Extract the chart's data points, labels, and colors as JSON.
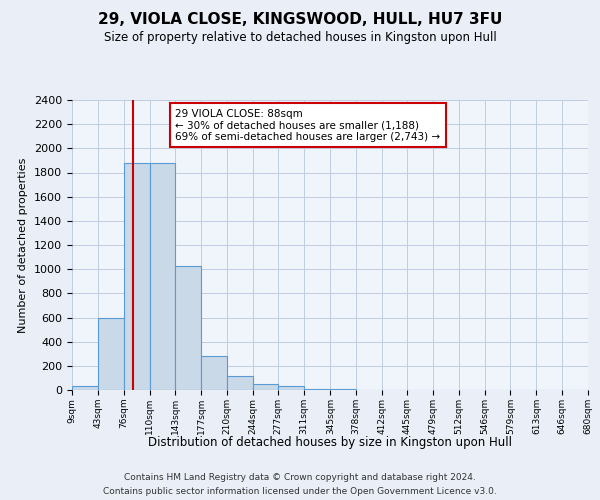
{
  "title": "29, VIOLA CLOSE, KINGSWOOD, HULL, HU7 3FU",
  "subtitle": "Size of property relative to detached houses in Kingston upon Hull",
  "xlabel": "Distribution of detached houses by size in Kingston upon Hull",
  "ylabel": "Number of detached properties",
  "footnote1": "Contains HM Land Registry data © Crown copyright and database right 2024.",
  "footnote2": "Contains public sector information licensed under the Open Government Licence v3.0.",
  "bin_edges": [
    9,
    43,
    76,
    110,
    143,
    177,
    210,
    244,
    277,
    311,
    345,
    378,
    412,
    445,
    479,
    512,
    546,
    579,
    613,
    646,
    680
  ],
  "bin_counts": [
    30,
    600,
    1880,
    1880,
    1030,
    285,
    115,
    50,
    30,
    10,
    5,
    2,
    1,
    0,
    0,
    0,
    0,
    0,
    0,
    0
  ],
  "bar_facecolor": "#c9d9e8",
  "bar_edgecolor": "#5b9bd5",
  "property_size": 88,
  "vline_color": "#cc0000",
  "annotation_text": "29 VIOLA CLOSE: 88sqm\n← 30% of detached houses are smaller (1,188)\n69% of semi-detached houses are larger (2,743) →",
  "annotation_box_edgecolor": "#cc0000",
  "annotation_box_facecolor": "white",
  "ylim": [
    0,
    2400
  ],
  "yticks": [
    0,
    200,
    400,
    600,
    800,
    1000,
    1200,
    1400,
    1600,
    1800,
    2000,
    2200,
    2400
  ],
  "bg_color": "#eaeff7",
  "plot_bg_color": "#f0f4fb",
  "grid_color": "#c0cce0"
}
